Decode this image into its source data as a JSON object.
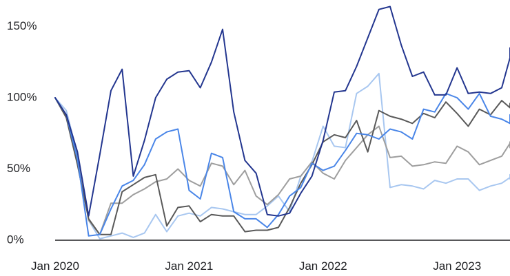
{
  "chart_data": {
    "type": "line",
    "x_start": "2020-01",
    "x_ticks": [
      "Jan 2020",
      "Jan 2021",
      "Jan 2022",
      "Jan 2023"
    ],
    "y_ticks": [
      "0%",
      "50%",
      "100%",
      "150%"
    ],
    "ylim": [
      0,
      160
    ],
    "grid": false,
    "series": [
      {
        "color": "#23368f",
        "values": [
          100,
          88,
          62,
          17,
          60,
          105,
          120,
          45,
          70,
          100,
          113,
          118,
          119,
          107,
          125,
          148,
          90,
          56,
          47,
          18,
          17,
          19,
          33,
          45,
          70,
          104,
          105,
          122,
          142,
          162,
          164,
          137,
          115,
          118,
          102,
          102,
          121,
          103,
          104,
          103,
          107,
          128,
          135
        ]
      },
      {
        "color": "#4a86e8",
        "values": [
          100,
          88,
          57,
          3,
          4,
          22,
          38,
          42,
          53,
          71,
          76,
          78,
          35,
          29,
          61,
          58,
          20,
          15,
          15,
          9,
          18,
          31,
          37,
          54,
          49,
          52,
          63,
          75,
          74,
          71,
          78,
          76,
          71,
          92,
          90,
          103,
          100,
          92,
          103,
          87,
          85,
          82,
          88
        ]
      },
      {
        "color": "#595959",
        "values": [
          100,
          86,
          53,
          15,
          4,
          4,
          34,
          39,
          44,
          46,
          10,
          23,
          24,
          13,
          18,
          17,
          17,
          6,
          7,
          7,
          9,
          23,
          40,
          53,
          69,
          74,
          72,
          84,
          62,
          91,
          87,
          85,
          82,
          89,
          86,
          97,
          89,
          80,
          92,
          88,
          98,
          93,
          96
        ]
      },
      {
        "color": "#9e9e9e",
        "values": [
          100,
          87,
          59,
          14,
          4,
          26,
          26,
          32,
          36,
          41,
          43,
          50,
          42,
          38,
          54,
          52,
          39,
          49,
          31,
          25,
          32,
          43,
          45,
          55,
          47,
          43,
          56,
          65,
          74,
          80,
          58,
          59,
          52,
          53,
          55,
          54,
          66,
          62,
          53,
          56,
          59,
          68,
          65,
          69
        ]
      },
      {
        "color": "#a8c7f0",
        "values": [
          100,
          91,
          60,
          14,
          1,
          3,
          5,
          2,
          5,
          18,
          6,
          17,
          19,
          17,
          23,
          22,
          20,
          18,
          18,
          24,
          31,
          20,
          45,
          55,
          80,
          66,
          65,
          103,
          108,
          117,
          37,
          39,
          38,
          36,
          42,
          40,
          43,
          43,
          35,
          38,
          40,
          44,
          43,
          46
        ]
      }
    ]
  }
}
